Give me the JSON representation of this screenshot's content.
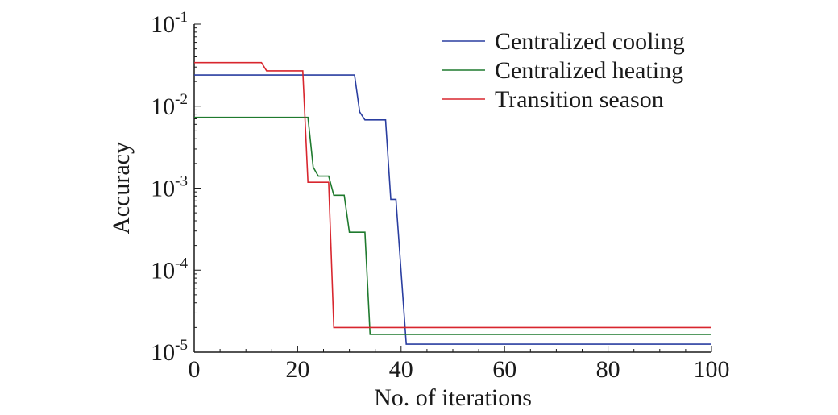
{
  "chart_data": {
    "type": "line",
    "xlabel": "No. of iterations",
    "ylabel": "Accuracy",
    "xlim": [
      0,
      100
    ],
    "ylim": [
      1e-05,
      0.1
    ],
    "yscale": "log",
    "grid": false,
    "legend_position": "top-right",
    "x_ticks": [
      {
        "value": 0,
        "label": "0"
      },
      {
        "value": 20,
        "label": "20"
      },
      {
        "value": 40,
        "label": "40"
      },
      {
        "value": 60,
        "label": "60"
      },
      {
        "value": 80,
        "label": "80"
      },
      {
        "value": 100,
        "label": "100"
      }
    ],
    "y_ticks": [
      {
        "value": 1e-05,
        "base": "10",
        "exp": "-5"
      },
      {
        "value": 0.0001,
        "base": "10",
        "exp": "-4"
      },
      {
        "value": 0.001,
        "base": "10",
        "exp": "-3"
      },
      {
        "value": 0.01,
        "base": "10",
        "exp": "-2"
      },
      {
        "value": 0.1,
        "base": "10",
        "exp": "-1"
      }
    ],
    "series": [
      {
        "name": "Centralized cooling",
        "color": "#2a3ea0",
        "x": [
          0,
          31,
          32,
          33,
          37,
          38,
          39,
          41,
          100
        ],
        "y": [
          0.024,
          0.024,
          0.0085,
          0.0068,
          0.0068,
          0.00073,
          0.00073,
          1.25e-05,
          1.25e-05
        ]
      },
      {
        "name": "Centralized heating",
        "color": "#1f7a2e",
        "x": [
          0,
          22,
          23,
          24,
          26,
          27,
          29,
          30,
          33,
          34,
          100
        ],
        "y": [
          0.0073,
          0.0073,
          0.0018,
          0.0014,
          0.0014,
          0.00082,
          0.00082,
          0.00029,
          0.00029,
          1.65e-05,
          1.65e-05
        ]
      },
      {
        "name": "Transition season",
        "color": "#d8262e",
        "x": [
          0,
          13,
          14,
          21,
          22,
          26,
          27,
          100
        ],
        "y": [
          0.034,
          0.034,
          0.027,
          0.027,
          0.00118,
          0.00118,
          2e-05,
          2e-05
        ]
      }
    ]
  }
}
